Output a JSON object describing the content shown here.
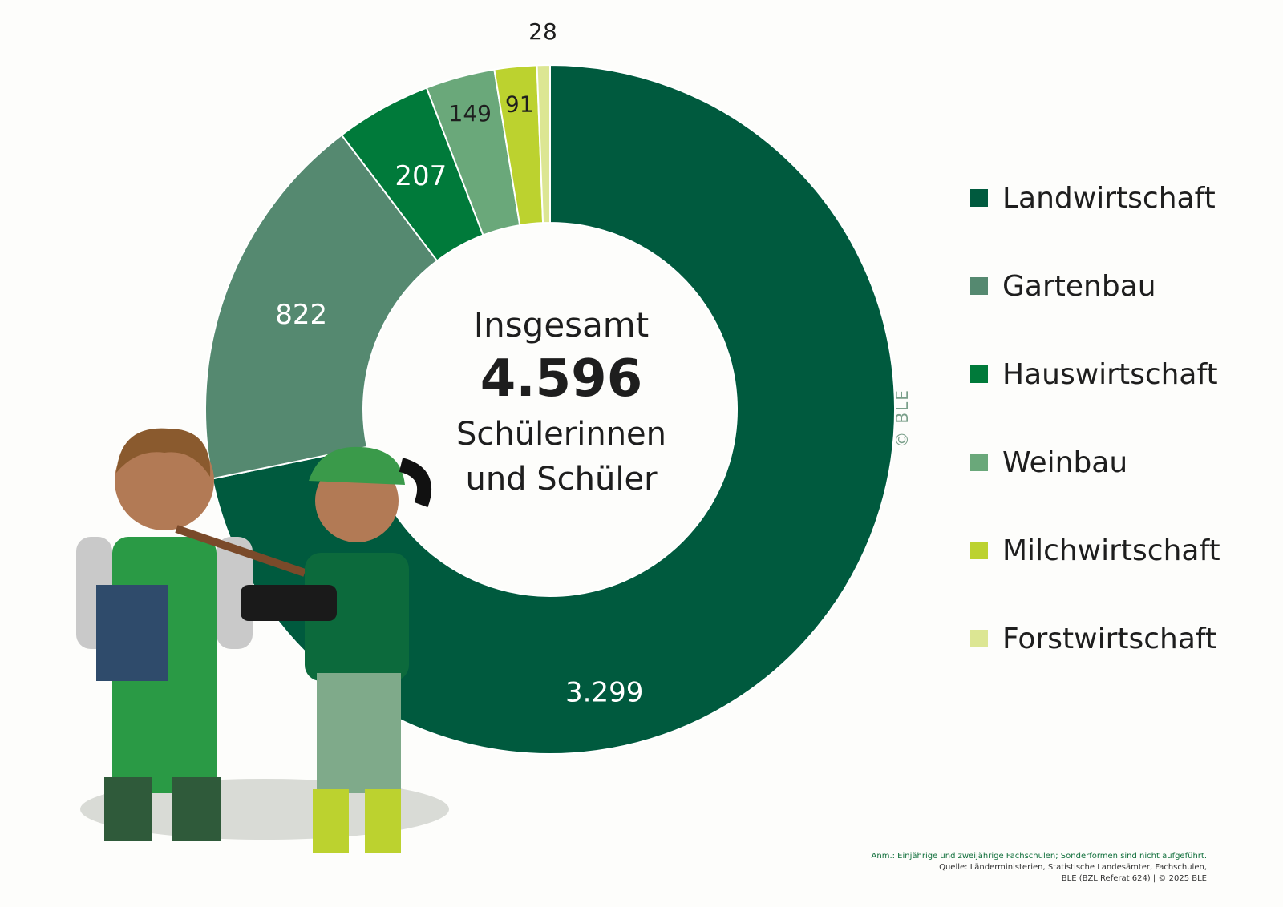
{
  "chart_data": {
    "type": "pie",
    "style": "donut",
    "categories": [
      "Landwirtschaft",
      "Gartenbau",
      "Hauswirtschaft",
      "Weinbau",
      "Milchwirtschaft",
      "Forstwirtschaft"
    ],
    "values": [
      3299,
      822,
      207,
      149,
      91,
      28
    ],
    "value_labels": [
      "3.299",
      "822",
      "207",
      "149",
      "91",
      "28"
    ],
    "colors": [
      "#005a3e",
      "#558970",
      "#007a3a",
      "#6aa87a",
      "#bcd22f",
      "#dce693"
    ],
    "label_colors": [
      "#ffffff",
      "#ffffff",
      "#ffffff",
      "#1e1e1e",
      "#1e1e1e",
      "#1e1e1e"
    ],
    "legend_position": "right",
    "center_text": {
      "top": "Insgesamt",
      "total": "4.596",
      "bottom_line1": "Schülerinnen",
      "bottom_line2": "und Schüler"
    }
  },
  "watermark": "© BLE",
  "note": {
    "line1": "Anm.: Einjährige und zweijährige Fachschulen; Sonderformen sind nicht aufgeführt.",
    "line2": "Quelle: Länderministerien, Statistische Landesämter, Fachschulen,",
    "line3": "BLE (BZL Referat 624) | © 2025 BLE"
  }
}
